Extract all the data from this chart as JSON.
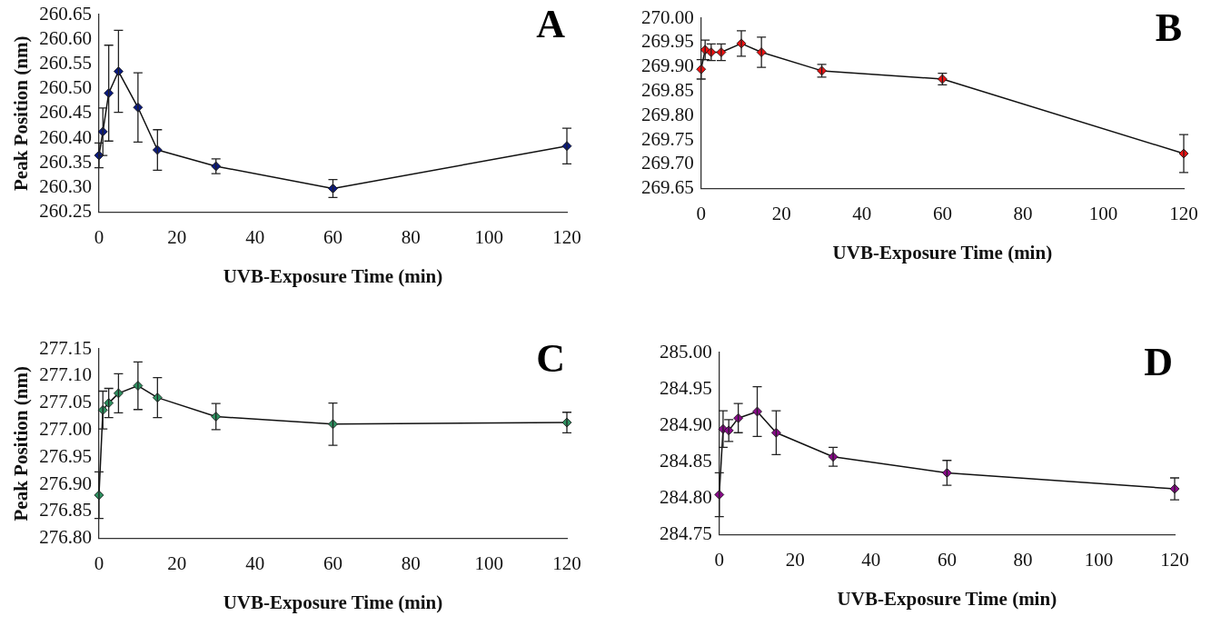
{
  "chart_data": [
    {
      "type": "line",
      "title": "A",
      "xlabel": "UVB-Exposure Time (min)",
      "ylabel": "Peak Position (nm)",
      "x": [
        0,
        1,
        2.5,
        5,
        10,
        15,
        30,
        60,
        120
      ],
      "series": [
        {
          "color": "#0a1a80",
          "values": [
            260.365,
            260.413,
            260.491,
            260.535,
            260.462,
            260.376,
            260.343,
            260.298,
            260.384
          ],
          "errors": [
            0.025,
            0.048,
            0.097,
            0.083,
            0.07,
            0.041,
            0.015,
            0.018,
            0.036
          ]
        }
      ],
      "xlim": [
        0,
        120
      ],
      "xticks": [
        0,
        20,
        40,
        60,
        80,
        100,
        120
      ],
      "ylim": [
        260.25,
        260.65
      ],
      "yticks": [
        260.25,
        {
          "value": 260.3,
          "label": "260.30"
        },
        260.35,
        {
          "value": 260.4,
          "label": "260.40"
        },
        260.45,
        {
          "value": 260.5,
          "label": "260.50"
        },
        260.55,
        {
          "value": 260.6,
          "label": "260.60"
        },
        260.65
      ],
      "marker": "diamond",
      "grid": false,
      "legend": false
    },
    {
      "type": "line",
      "title": "B",
      "xlabel": "UVB-Exposure Time (min)",
      "x": [
        0,
        1,
        2.5,
        5,
        10,
        15,
        30,
        60,
        120
      ],
      "series": [
        {
          "color": "#ee1111",
          "values": [
            269.895,
            269.935,
            269.93,
            269.93,
            269.948,
            269.93,
            269.892,
            269.875,
            269.722
          ],
          "errors": [
            0.02,
            0.02,
            0.017,
            0.017,
            0.026,
            0.031,
            0.013,
            0.012,
            0.039
          ]
        }
      ],
      "xlim": [
        0,
        120
      ],
      "xticks": [
        0,
        20,
        40,
        60,
        80,
        100,
        120
      ],
      "ylim": [
        269.65,
        270.0
      ],
      "yticks": [
        269.65,
        {
          "value": 269.7,
          "label": "269.70"
        },
        269.75,
        {
          "value": 269.8,
          "label": "269.80"
        },
        269.85,
        {
          "value": 269.9,
          "label": "269.90"
        },
        269.95,
        {
          "value": 270,
          "label": "270.00"
        }
      ],
      "marker": "diamond",
      "grid": false,
      "legend": false
    },
    {
      "type": "line",
      "title": "C",
      "xlabel": "UVB-Exposure Time (min)",
      "ylabel": "Peak Position (nm)",
      "x": [
        0,
        1,
        2.5,
        5,
        10,
        15,
        30,
        60,
        120
      ],
      "series": [
        {
          "color": "#2e9060",
          "values": [
            276.88,
            277.037,
            277.05,
            277.068,
            277.082,
            277.06,
            277.025,
            277.011,
            277.014
          ],
          "errors": [
            0.043,
            0.035,
            0.027,
            0.036,
            0.044,
            0.037,
            0.024,
            0.039,
            0.019
          ]
        }
      ],
      "xlim": [
        0,
        120
      ],
      "xticks": [
        0,
        20,
        40,
        60,
        80,
        100,
        120
      ],
      "ylim": [
        276.8,
        277.15
      ],
      "yticks": [
        {
          "value": 276.8,
          "label": "276.80"
        },
        276.85,
        {
          "value": 276.9,
          "label": "276.90"
        },
        276.95,
        {
          "value": 277,
          "label": "277.00"
        },
        277.05,
        {
          "value": 277.1,
          "label": "277.10"
        },
        277.15
      ],
      "marker": "diamond",
      "grid": false,
      "legend": false
    },
    {
      "type": "line",
      "title": "D",
      "xlabel": "UVB-Exposure Time (min)",
      "x": [
        0,
        1,
        2.5,
        5,
        10,
        15,
        30,
        60,
        120
      ],
      "series": [
        {
          "color": "#8a0a8a",
          "values": [
            284.805,
            284.895,
            284.893,
            284.91,
            284.919,
            284.89,
            284.857,
            284.835,
            284.813
          ],
          "errors": [
            0.03,
            0.025,
            0.015,
            0.02,
            0.034,
            0.03,
            0.013,
            0.017,
            0.015
          ]
        }
      ],
      "xlim": [
        0,
        120
      ],
      "xticks": [
        0,
        20,
        40,
        60,
        80,
        100,
        120
      ],
      "ylim": [
        284.75,
        285.0
      ],
      "yticks": [
        284.75,
        {
          "value": 284.8,
          "label": "284.80"
        },
        284.85,
        {
          "value": 284.9,
          "label": "284.90"
        },
        284.95,
        {
          "value": 285,
          "label": "285.00"
        }
      ],
      "marker": "diamond",
      "grid": false,
      "legend": false
    }
  ]
}
